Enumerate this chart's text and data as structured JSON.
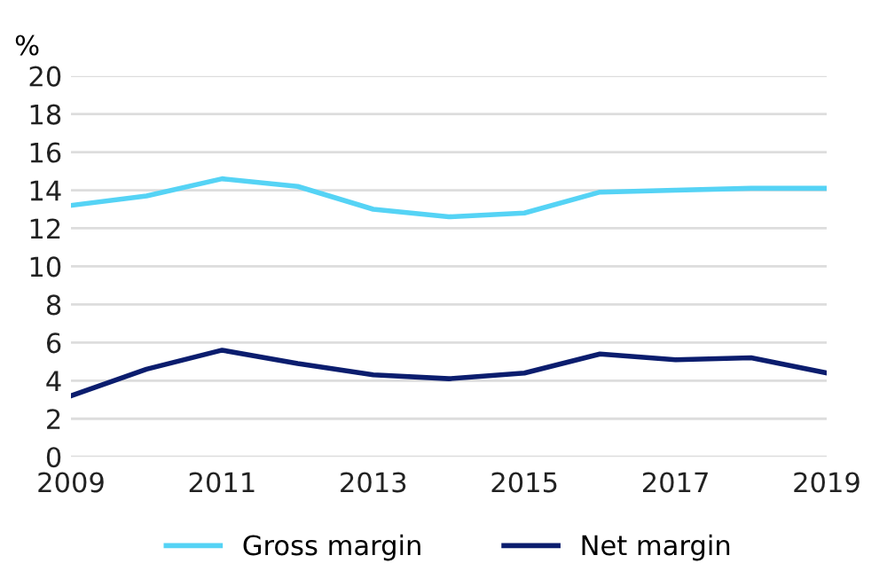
{
  "chart_data": {
    "type": "line",
    "ylabel": "%",
    "x": [
      2009,
      2010,
      2011,
      2012,
      2013,
      2014,
      2015,
      2016,
      2017,
      2018,
      2019
    ],
    "series": [
      {
        "name": "Gross margin",
        "color": "#55d3f5",
        "values": [
          13.2,
          13.7,
          14.6,
          14.2,
          13.0,
          12.6,
          12.8,
          13.9,
          14.0,
          14.1,
          14.1
        ]
      },
      {
        "name": "Net margin",
        "color": "#0b1d6e",
        "values": [
          3.2,
          4.6,
          5.6,
          4.9,
          4.3,
          4.1,
          4.4,
          5.4,
          5.1,
          5.2,
          4.4
        ]
      }
    ],
    "xlim": [
      2009,
      2019
    ],
    "xticks": [
      2009,
      2011,
      2013,
      2015,
      2017,
      2019
    ],
    "ylim": [
      0,
      20
    ],
    "yticks": [
      0,
      2,
      4,
      6,
      8,
      10,
      12,
      14,
      16,
      18,
      20
    ],
    "grid": "y",
    "legend": "bottom",
    "marker": "none",
    "line_style": "solid"
  }
}
